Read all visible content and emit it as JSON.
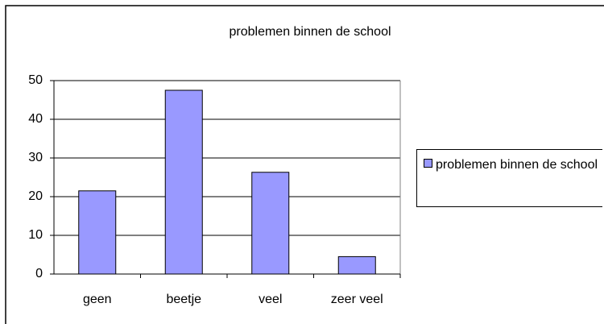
{
  "chart_data": {
    "type": "bar",
    "title": "problemen binnen de school",
    "categories": [
      "geen",
      "beetje",
      "veel",
      "zeer veel"
    ],
    "series": [
      {
        "name": "problemen binnen de school",
        "color": "#9999ff",
        "values": [
          21.5,
          47.5,
          26.3,
          4.5
        ]
      }
    ],
    "ylim": [
      0,
      50
    ],
    "yticks": [
      0,
      10,
      20,
      30,
      40,
      50
    ],
    "grid": true,
    "legend": "right"
  }
}
